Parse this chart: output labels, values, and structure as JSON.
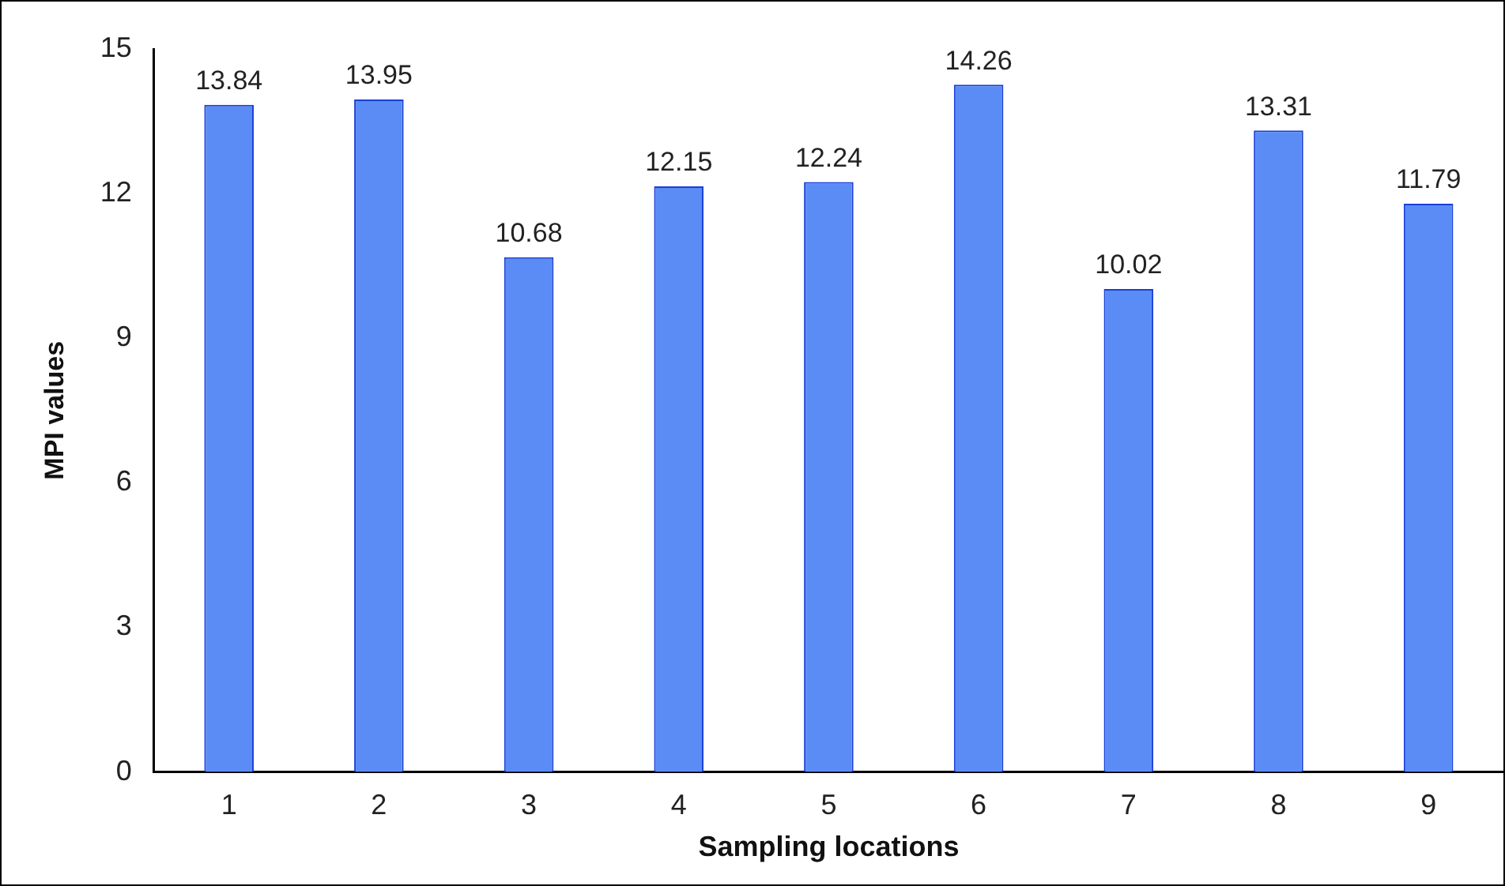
{
  "chart_data": {
    "type": "bar",
    "xlabel": "Sampling locations",
    "ylabel": "MPI values",
    "categories": [
      "1",
      "2",
      "3",
      "4",
      "5",
      "6",
      "7",
      "8",
      "9"
    ],
    "values": [
      13.84,
      13.95,
      10.68,
      12.15,
      12.24,
      14.26,
      10.02,
      13.31,
      11.79
    ],
    "color": "#5b8cf6",
    "ylim": [
      0,
      15
    ],
    "yticks": [
      0,
      3,
      6,
      9,
      12,
      15
    ],
    "grid": false,
    "legend": false,
    "data_labels": true
  }
}
